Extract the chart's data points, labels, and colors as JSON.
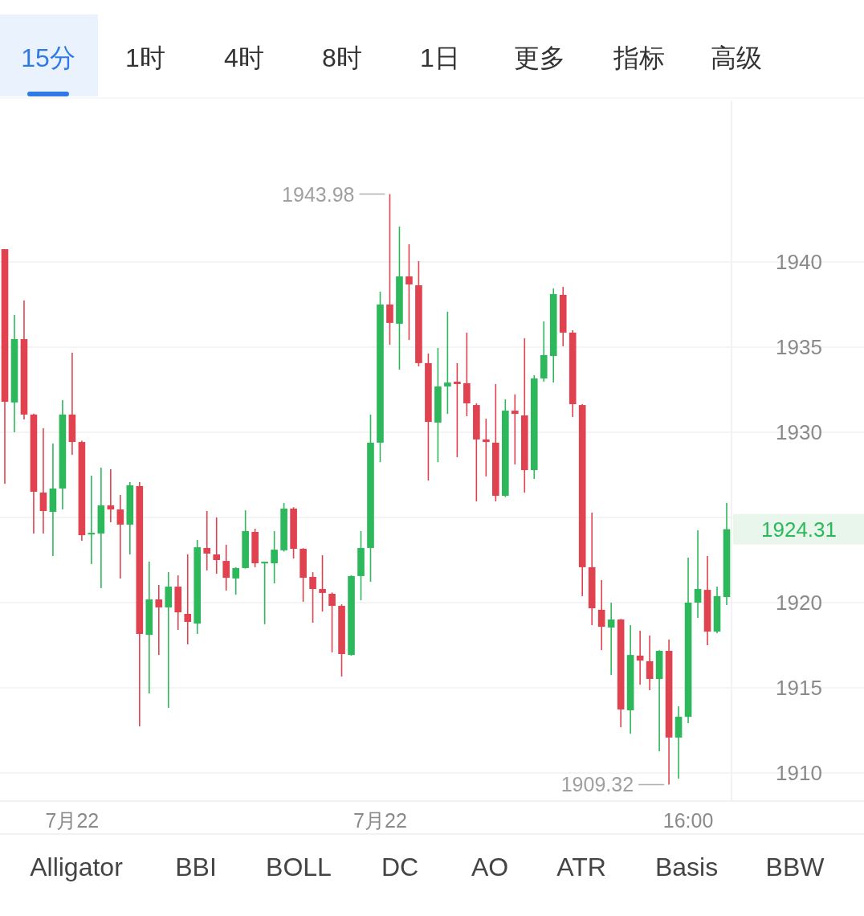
{
  "chart_data": {
    "type": "candlestick",
    "categories": [
      null,
      null,
      null,
      null,
      null,
      null,
      null,
      "7月22",
      null,
      null,
      null,
      null,
      null,
      null,
      null,
      null,
      null,
      null,
      null,
      null,
      null,
      null,
      null,
      null,
      null,
      null,
      null,
      null,
      null,
      null,
      null,
      null,
      null,
      null,
      null,
      null,
      null,
      null,
      null,
      "7月22",
      null,
      null,
      null,
      null,
      null,
      null,
      null,
      null,
      null,
      null,
      null,
      null,
      null,
      null,
      null,
      null,
      null,
      null,
      null,
      null,
      null,
      null,
      null,
      null,
      null,
      null,
      null,
      null,
      null,
      null,
      null,
      "16:00",
      null,
      null,
      null,
      null
    ],
    "ohlc": [
      [
        1940.75,
        1940.75,
        1926.98,
        1931.79
      ],
      [
        1931.75,
        1936.89,
        1930.0,
        1935.47
      ],
      [
        1935.47,
        1937.74,
        1930.75,
        1931.04
      ],
      [
        1931.04,
        1931.1,
        1924.06,
        1926.51
      ],
      [
        1926.46,
        1930.24,
        1924.06,
        1925.38
      ],
      [
        1925.33,
        1929.34,
        1922.74,
        1926.7
      ],
      [
        1926.7,
        1931.89,
        1925.47,
        1931.04
      ],
      [
        1931.04,
        1934.67,
        1928.68,
        1929.43
      ],
      [
        1929.43,
        1929.5,
        1923.63,
        1923.96
      ],
      [
        1924.0,
        1927.45,
        1922.26,
        1924.1
      ],
      [
        1924.06,
        1927.92,
        1920.85,
        1925.71
      ],
      [
        1925.71,
        1927.83,
        1924.72,
        1925.47
      ],
      [
        1925.47,
        1926.32,
        1921.42,
        1924.58
      ],
      [
        1924.58,
        1927.08,
        1922.83,
        1926.89
      ],
      [
        1926.84,
        1927.08,
        1912.74,
        1918.16
      ],
      [
        1918.11,
        1922.41,
        1914.67,
        1920.19
      ],
      [
        1920.19,
        1921.04,
        1916.93,
        1919.72
      ],
      [
        1919.72,
        1921.79,
        1913.82,
        1920.94
      ],
      [
        1920.94,
        1921.6,
        1918.4,
        1919.43
      ],
      [
        1919.34,
        1922.83,
        1917.55,
        1918.87
      ],
      [
        1918.77,
        1923.68,
        1918.16,
        1923.25
      ],
      [
        1923.21,
        1925.38,
        1921.89,
        1922.88
      ],
      [
        1922.83,
        1925.0,
        1921.7,
        1922.5
      ],
      [
        1922.45,
        1923.4,
        1920.71,
        1921.46
      ],
      [
        1921.42,
        1922.08,
        1920.47,
        1922.03
      ],
      [
        1922.03,
        1925.42,
        1922.0,
        1924.2
      ],
      [
        1924.15,
        1924.34,
        1922.08,
        1922.31
      ],
      [
        1922.3,
        1922.4,
        1918.73,
        1922.4
      ],
      [
        1922.31,
        1924.2,
        1921.13,
        1923.11
      ],
      [
        1923.07,
        1925.85,
        1923.0,
        1925.52
      ],
      [
        1925.52,
        1925.6,
        1922.59,
        1923.16
      ],
      [
        1923.16,
        1923.2,
        1920.05,
        1921.46
      ],
      [
        1921.51,
        1921.79,
        1918.82,
        1920.8
      ],
      [
        1920.8,
        1922.78,
        1919.48,
        1920.57
      ],
      [
        1920.52,
        1920.6,
        1917.08,
        1919.81
      ],
      [
        1919.81,
        1919.9,
        1915.66,
        1916.98
      ],
      [
        1916.93,
        1921.6,
        1916.89,
        1921.56
      ],
      [
        1921.56,
        1924.2,
        1920.14,
        1923.21
      ],
      [
        1923.21,
        1931.04,
        1921.23,
        1929.39
      ],
      [
        1929.39,
        1938.25,
        1928.25,
        1937.5
      ],
      [
        1937.5,
        1943.98,
        1935.14,
        1936.42
      ],
      [
        1936.37,
        1942.08,
        1933.68,
        1939.15
      ],
      [
        1939.15,
        1941.04,
        1935.42,
        1938.68
      ],
      [
        1938.63,
        1940.05,
        1933.87,
        1934.06
      ],
      [
        1934.06,
        1934.62,
        1927.17,
        1930.61
      ],
      [
        1930.57,
        1934.95,
        1928.25,
        1932.69
      ],
      [
        1932.69,
        1937.08,
        1931.08,
        1932.92
      ],
      [
        1932.97,
        1934.06,
        1928.54,
        1932.83
      ],
      [
        1932.88,
        1935.85,
        1930.94,
        1931.7
      ],
      [
        1931.6,
        1931.7,
        1925.94,
        1929.58
      ],
      [
        1929.58,
        1930.8,
        1927.41,
        1929.43
      ],
      [
        1929.39,
        1932.83,
        1925.94,
        1926.27
      ],
      [
        1926.27,
        1931.93,
        1926.2,
        1931.27
      ],
      [
        1931.27,
        1932.22,
        1928.11,
        1931.08
      ],
      [
        1930.99,
        1935.52,
        1926.46,
        1927.78
      ],
      [
        1927.78,
        1933.35,
        1927.26,
        1933.16
      ],
      [
        1933.16,
        1936.51,
        1932.97,
        1934.53
      ],
      [
        1934.48,
        1938.44,
        1932.92,
        1938.11
      ],
      [
        1938.07,
        1938.54,
        1935.05,
        1935.85
      ],
      [
        1935.85,
        1935.99,
        1930.9,
        1931.65
      ],
      [
        1931.6,
        1931.65,
        1920.38,
        1922.08
      ],
      [
        1922.08,
        1925.28,
        1918.68,
        1919.67
      ],
      [
        1919.58,
        1921.32,
        1917.22,
        1918.58
      ],
      [
        1918.54,
        1920.0,
        1915.75,
        1919.01
      ],
      [
        1919.01,
        1919.05,
        1912.69,
        1913.73
      ],
      [
        1913.68,
        1918.68,
        1912.31,
        1916.93
      ],
      [
        1916.89,
        1918.35,
        1915.19,
        1916.6
      ],
      [
        1916.56,
        1918.07,
        1914.86,
        1915.52
      ],
      [
        1915.52,
        1917.2,
        1911.27,
        1917.17
      ],
      [
        1917.17,
        1917.83,
        1909.32,
        1912.08
      ],
      [
        1912.08,
        1913.92,
        1909.67,
        1913.3
      ],
      [
        1913.3,
        1922.64,
        1912.92,
        1920.0
      ],
      [
        1920.0,
        1924.25,
        1919.1,
        1920.8
      ],
      [
        1920.75,
        1922.74,
        1917.5,
        1918.3
      ],
      [
        1918.3,
        1920.94,
        1918.2,
        1920.38
      ],
      [
        1920.33,
        1925.85,
        1919.86,
        1924.31
      ]
    ],
    "colors": [
      "#e0434f",
      "#2eb85c",
      "#e0434f",
      "#e0434f",
      "#e0434f",
      "#2eb85c",
      "#2eb85c",
      "#e0434f",
      "#e0434f",
      "#2eb85c",
      "#2eb85c",
      "#e0434f",
      "#e0434f",
      "#2eb85c",
      "#e0434f",
      "#2eb85c",
      "#e0434f",
      "#2eb85c",
      "#e0434f",
      "#e0434f",
      "#2eb85c",
      "#e0434f",
      "#e0434f",
      "#e0434f",
      "#2eb85c",
      "#2eb85c",
      "#e0434f",
      "#2eb85c",
      "#2eb85c",
      "#2eb85c",
      "#e0434f",
      "#e0434f",
      "#e0434f",
      "#e0434f",
      "#e0434f",
      "#e0434f",
      "#2eb85c",
      "#2eb85c",
      "#2eb85c",
      "#2eb85c",
      "#e0434f",
      "#2eb85c",
      "#e0434f",
      "#e0434f",
      "#e0434f",
      "#2eb85c",
      "#2eb85c",
      "#e0434f",
      "#e0434f",
      "#e0434f",
      "#e0434f",
      "#e0434f",
      "#2eb85c",
      "#e0434f",
      "#e0434f",
      "#2eb85c",
      "#2eb85c",
      "#2eb85c",
      "#e0434f",
      "#e0434f",
      "#e0434f",
      "#e0434f",
      "#e0434f",
      "#2eb85c",
      "#e0434f",
      "#2eb85c",
      "#e0434f",
      "#e0434f",
      "#2eb85c",
      "#e0434f",
      "#2eb85c",
      "#2eb85c",
      "#2eb85c",
      "#e0434f",
      "#2eb85c",
      "#2eb85c"
    ],
    "ylim": [
      1908.35,
      1949.48
    ],
    "yticks": [
      1910,
      1915,
      1920,
      {
        "value": 1925,
        "label": null
      },
      1930,
      1935,
      1940
    ],
    "grid": "y",
    "annotations": [
      "15分",
      "1时",
      "4时",
      "8时",
      "1日",
      "更多",
      "指标",
      "高级",
      "Alligator",
      "BBI",
      "BOLL",
      "DC",
      "AO",
      "ATR",
      "Basis",
      "BBW",
      "1943.98",
      "1909.32",
      "1924.31"
    ]
  }
}
